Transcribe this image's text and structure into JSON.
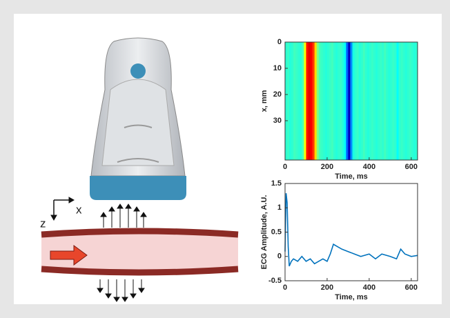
{
  "illustration": {
    "x_label": "x",
    "z_label": "z"
  },
  "chart_data": [
    {
      "type": "heatmap",
      "xlabel": "Time, ms",
      "ylabel": "x, mm",
      "x": [
        0,
        10,
        20,
        30,
        40,
        50,
        60,
        70,
        80,
        90,
        100,
        110,
        120,
        130,
        140,
        150,
        160,
        170,
        180,
        190,
        200,
        210,
        220,
        230,
        240,
        250,
        260,
        270,
        280,
        290,
        300,
        310,
        320,
        330,
        340,
        350,
        360,
        370,
        380,
        390,
        400,
        410,
        420,
        430,
        440,
        450,
        460,
        470,
        480,
        490,
        500,
        510,
        520,
        530,
        540,
        550,
        560,
        570,
        580,
        590,
        600,
        610,
        620
      ],
      "values": [
        0.42,
        0.43,
        0.41,
        0.42,
        0.44,
        0.43,
        0.42,
        0.41,
        0.45,
        0.62,
        0.86,
        0.9,
        0.88,
        0.82,
        0.66,
        0.5,
        0.44,
        0.43,
        0.42,
        0.41,
        0.42,
        0.43,
        0.44,
        0.42,
        0.41,
        0.42,
        0.43,
        0.41,
        0.38,
        0.22,
        0.06,
        0.26,
        0.4,
        0.42,
        0.43,
        0.41,
        0.42,
        0.44,
        0.42,
        0.41,
        0.42,
        0.43,
        0.42,
        0.41,
        0.42,
        0.43,
        0.42,
        0.44,
        0.42,
        0.41,
        0.42,
        0.43,
        0.42,
        0.38,
        0.42,
        0.43,
        0.42,
        0.41,
        0.42,
        0.43,
        0.42,
        0.41,
        0.42
      ],
      "xlim": [
        0,
        630
      ],
      "xticks": [
        0,
        200,
        400,
        600
      ],
      "ylim": [
        0,
        45
      ],
      "yticks": [
        0,
        10,
        20,
        30
      ],
      "y_reversed": true,
      "colormap": "jet"
    },
    {
      "type": "line",
      "xlabel": "Time, ms",
      "ylabel": "ECG Amplitude, A.U.",
      "series": [
        {
          "color": "#0072bd",
          "x": [
            0,
            5,
            10,
            15,
            20,
            30,
            40,
            60,
            80,
            100,
            120,
            140,
            160,
            180,
            200,
            215,
            230,
            250,
            270,
            300,
            330,
            360,
            400,
            430,
            460,
            500,
            530,
            550,
            570,
            600,
            630
          ],
          "values": [
            0.1,
            1.3,
            1.1,
            0.2,
            -0.2,
            -0.1,
            -0.05,
            -0.1,
            0.0,
            -0.1,
            -0.05,
            -0.15,
            -0.1,
            -0.05,
            -0.1,
            0.05,
            0.25,
            0.2,
            0.15,
            0.1,
            0.05,
            0.0,
            0.05,
            -0.05,
            0.05,
            0.0,
            -0.05,
            0.15,
            0.05,
            0.0,
            0.02
          ]
        }
      ],
      "xlim": [
        0,
        630
      ],
      "xticks": [
        0,
        200,
        400,
        600
      ],
      "ylim": [
        -0.5,
        1.5
      ],
      "yticks": [
        -0.5,
        0,
        0.5,
        1,
        1.5
      ]
    }
  ]
}
